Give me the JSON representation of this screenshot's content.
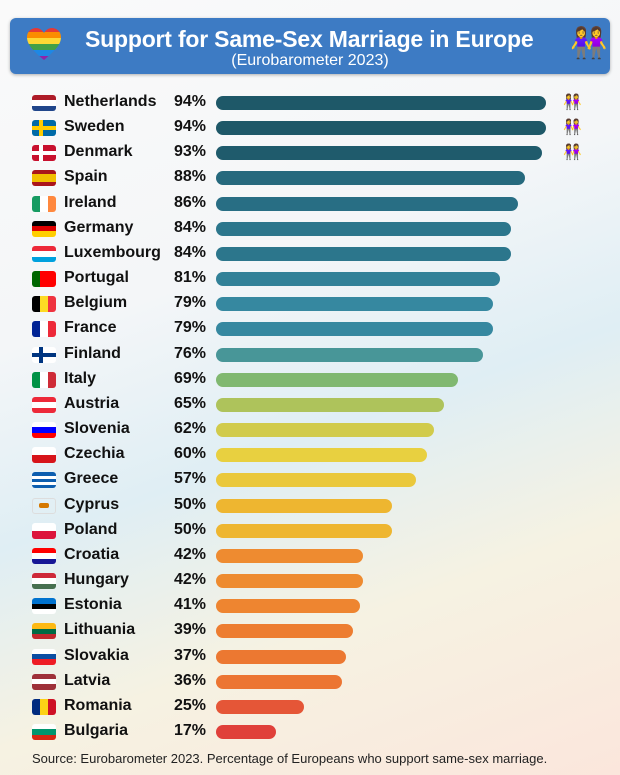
{
  "header": {
    "title": "Support for Same-Sex Marriage in Europe",
    "subtitle": "(Eurobarometer 2023)"
  },
  "source": "Source: Eurobarometer 2023. Percentage of Europeans who support same-sex marriage.",
  "chart_data": {
    "type": "bar",
    "orientation": "horizontal",
    "xlim": [
      0,
      100
    ],
    "grid": false,
    "title": "Support for Same-Sex Marriage in Europe",
    "subtitle": "(Eurobarometer 2023)",
    "categories": [
      "Netherlands",
      "Sweden",
      "Denmark",
      "Spain",
      "Ireland",
      "Germany",
      "Luxembourg",
      "Portugal",
      "Belgium",
      "France",
      "Finland",
      "Italy",
      "Austria",
      "Slovenia",
      "Czechia",
      "Greece",
      "Cyprus",
      "Poland",
      "Croatia",
      "Hungary",
      "Estonia",
      "Lithuania",
      "Slovakia",
      "Latvia",
      "Romania",
      "Bulgaria"
    ],
    "values": [
      94,
      94,
      93,
      88,
      86,
      84,
      84,
      81,
      79,
      79,
      76,
      69,
      65,
      62,
      60,
      57,
      50,
      50,
      42,
      42,
      41,
      39,
      37,
      36,
      25,
      17
    ],
    "labels": [
      "94%",
      "94%",
      "93%",
      "88%",
      "86%",
      "84%",
      "84%",
      "81%",
      "79%",
      "79%",
      "76%",
      "69%",
      "65%",
      "62%",
      "60%",
      "57%",
      "50%",
      "50%",
      "42%",
      "42%",
      "41%",
      "39%",
      "37%",
      "36%",
      "25%",
      "17%"
    ],
    "flags": [
      [
        "h",
        "#ae1c28",
        "#fff",
        "#21468b"
      ],
      [
        "cross",
        "#006aa7",
        "#fecc00"
      ],
      [
        "cross",
        "#c8102e",
        "#fff"
      ],
      [
        "h",
        "#aa151b",
        "#f1bf00",
        "#f1bf00",
        "#aa151b"
      ],
      [
        "v",
        "#169b62",
        "#fff",
        "#ff883e"
      ],
      [
        "h",
        "#000",
        "#dd0000",
        "#ffce00"
      ],
      [
        "h",
        "#ed2939",
        "#fff",
        "#00a1de"
      ],
      [
        "v",
        "#006600",
        "#ff0000",
        "#ff0000"
      ],
      [
        "v",
        "#000",
        "#fdda24",
        "#ef3340"
      ],
      [
        "v",
        "#002395",
        "#fff",
        "#ed2939"
      ],
      [
        "cross",
        "#fff",
        "#003580"
      ],
      [
        "v",
        "#009246",
        "#fff",
        "#ce2b37"
      ],
      [
        "h",
        "#ed2939",
        "#fff",
        "#ed2939"
      ],
      [
        "h",
        "#fff",
        "#0000ff",
        "#ff0000"
      ],
      [
        "h",
        "#fff",
        "#d7141a"
      ],
      [
        "h",
        "#0d5eaf",
        "#fff",
        "#0d5eaf",
        "#fff",
        "#0d5eaf"
      ],
      [
        "h",
        "#fff",
        "#fff"
      ],
      [
        "h",
        "#fff",
        "#dc143c"
      ],
      [
        "h",
        "#ff0000",
        "#fff",
        "#171796"
      ],
      [
        "h",
        "#ce2939",
        "#fff",
        "#477050"
      ],
      [
        "h",
        "#0072ce",
        "#000",
        "#fff"
      ],
      [
        "h",
        "#fdb913",
        "#006a44",
        "#c1272d"
      ],
      [
        "h",
        "#fff",
        "#0b4ea2",
        "#ee1c25"
      ],
      [
        "h",
        "#9e3039",
        "#fff",
        "#9e3039"
      ],
      [
        "v",
        "#002b7f",
        "#fcd116",
        "#ce1126"
      ],
      [
        "h",
        "#fff",
        "#00966e",
        "#d62612"
      ]
    ]
  }
}
